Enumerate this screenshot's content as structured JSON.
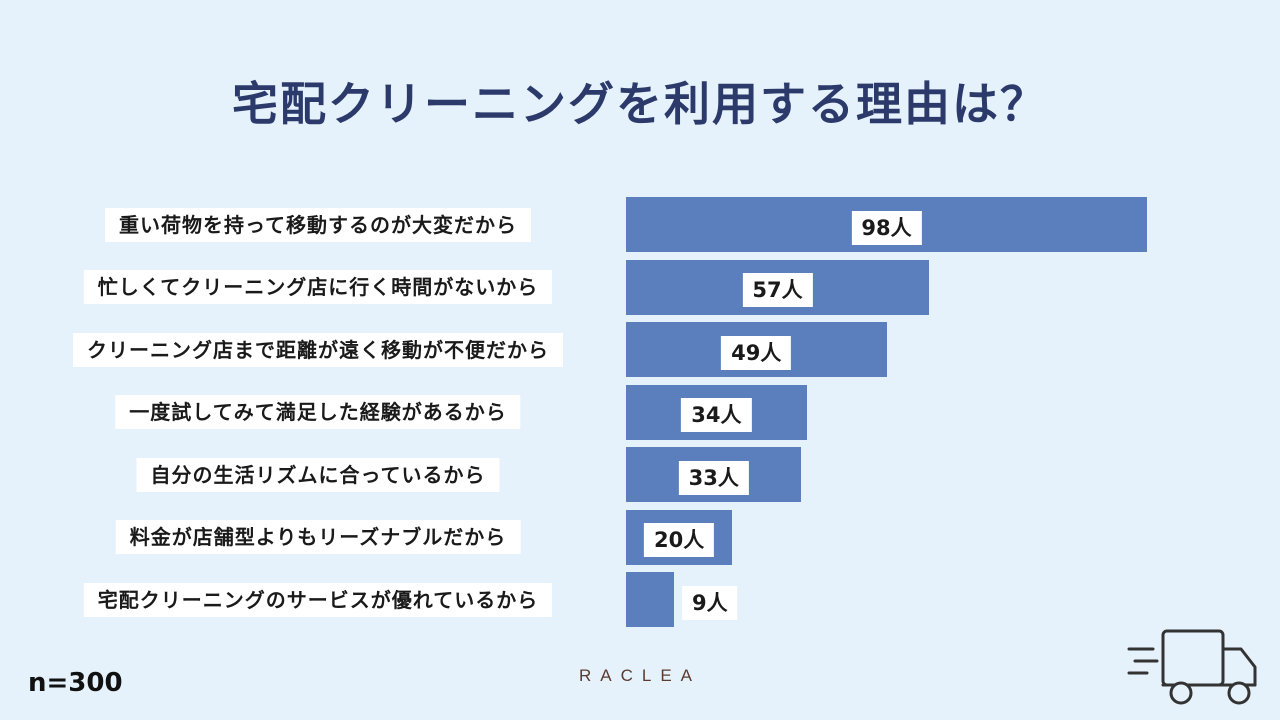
{
  "title": "宅配クリーニングを利用する理由は？",
  "sample_size": "n=300",
  "brand": "RACLEA",
  "icons": {
    "truck": "delivery-truck-icon"
  },
  "colors": {
    "background": "#e6f2fb",
    "bar": "#5b7fbc",
    "title": "#2b3a6b"
  },
  "chart_data": {
    "type": "bar",
    "orientation": "horizontal",
    "categories": [
      "重い荷物を持って移動するのが大変だから",
      "忙しくてクリーニング店に行く時間がないから",
      "クリーニング店まで距離が遠く移動が不便だから",
      "一度試してみて満足した経験があるから",
      "自分の生活リズムに合っているから",
      "料金が店舗型よりもリーズナブルだから",
      "宅配クリーニングのサービスが優れているから"
    ],
    "values": [
      98,
      57,
      49,
      34,
      33,
      20,
      9
    ],
    "data_labels": [
      "98人",
      "57人",
      "49人",
      "34人",
      "33人",
      "20人",
      "9人"
    ]
  }
}
